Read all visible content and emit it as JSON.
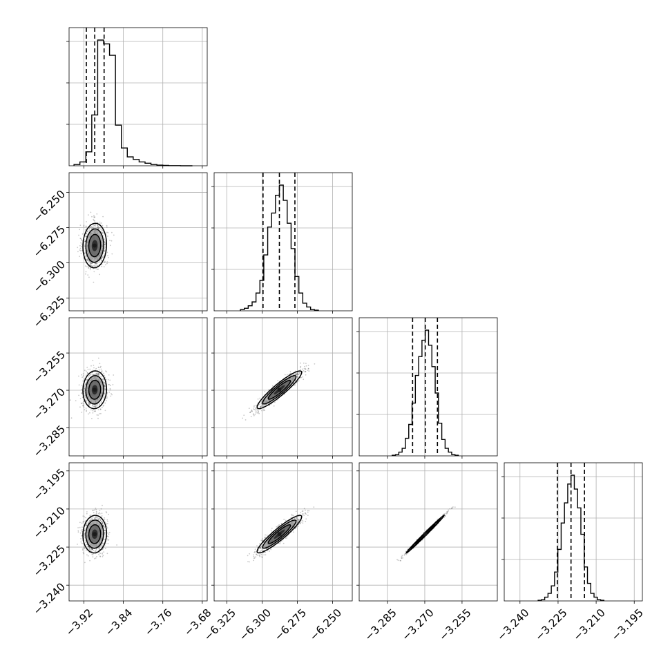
{
  "chart_data": {
    "type": "corner",
    "grid": true,
    "colors": {
      "line": "#000000",
      "frame": "#000000",
      "grid": "#b0b0b0",
      "scatter": "#000000",
      "fill_low": "#9a9a9a",
      "fill_mid": "#5e5e5e",
      "fill_high": "#1a1a1a"
    },
    "params": [
      {
        "range": [
          -3.95,
          -3.67
        ],
        "ticks": [
          -3.92,
          -3.84,
          -3.76,
          -3.68
        ],
        "tick_labels": [
          "−3.92",
          "−3.84",
          "−3.76",
          "−3.68"
        ],
        "quantiles": [
          -3.915,
          -3.898,
          -3.879
        ],
        "median": -3.898
      },
      {
        "range": [
          -6.334,
          -6.236
        ],
        "ticks": [
          -6.325,
          -6.3,
          -6.275,
          -6.25
        ],
        "tick_labels": [
          "−6.325",
          "−6.300",
          "−6.275",
          "−6.250"
        ],
        "quantiles": [
          -6.2993,
          -6.2877,
          -6.2767
        ],
        "median": -6.2877
      },
      {
        "range": [
          -3.2964,
          -3.2408
        ],
        "ticks": [
          -3.285,
          -3.27,
          -3.255
        ],
        "tick_labels": [
          "−3.285",
          "−3.270",
          "−3.255"
        ],
        "quantiles": [
          -3.2749,
          -3.2698,
          -3.2649
        ],
        "median": -3.2698
      },
      {
        "range": [
          -3.2462,
          -3.1918
        ],
        "ticks": [
          -3.24,
          -3.225,
          -3.21,
          -3.195
        ],
        "tick_labels": [
          "−3.240",
          "−3.225",
          "−3.210",
          "−3.195"
        ],
        "quantiles": [
          -3.2253,
          -3.2199,
          -3.2146
        ],
        "median": -3.2199
      }
    ],
    "histograms": [
      {
        "param": 0,
        "counts": [
          1,
          3,
          11,
          40,
          99,
          96,
          87,
          32,
          14,
          7,
          5,
          3,
          2,
          1,
          0.5,
          0.3,
          0.1,
          0.1,
          0,
          0
        ]
      },
      {
        "param": 1,
        "counts": [
          1,
          2,
          4,
          7,
          14,
          24,
          44,
          66,
          77,
          91,
          99,
          87,
          69,
          49,
          27,
          14,
          6,
          3,
          1,
          0.5
        ]
      },
      {
        "param": 2,
        "counts": [
          0.5,
          1,
          3,
          6,
          14,
          25,
          42,
          64,
          79,
          92,
          100,
          88,
          71,
          50,
          26,
          13,
          6,
          3,
          1,
          0.5
        ]
      },
      {
        "param": 3,
        "counts": [
          0.5,
          1,
          3,
          6,
          12,
          23,
          41,
          62,
          78,
          93,
          100,
          89,
          74,
          53,
          27,
          14,
          6,
          3,
          1,
          0.5
        ]
      }
    ],
    "correlations": [
      {
        "x": 0,
        "y": 1,
        "r": 0.05
      },
      {
        "x": 0,
        "y": 2,
        "r": 0.05
      },
      {
        "x": 1,
        "y": 2,
        "r": 0.92
      },
      {
        "x": 0,
        "y": 3,
        "r": 0.05
      },
      {
        "x": 1,
        "y": 3,
        "r": 0.92
      },
      {
        "x": 2,
        "y": 3,
        "r": 0.995
      }
    ],
    "spread": [
      0.012,
      0.0079,
      0.0038,
      0.0037
    ],
    "contour_levels": [
      0.5,
      1.0,
      1.5,
      2.0
    ],
    "scatter_points_per_panel": 900
  }
}
